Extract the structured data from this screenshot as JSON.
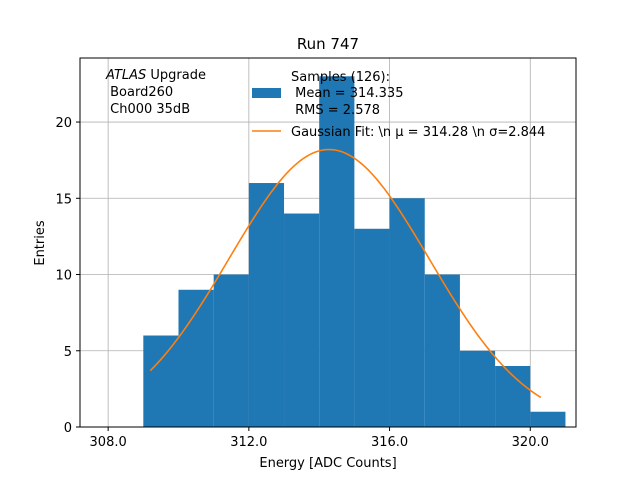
{
  "chart_data": {
    "type": "bar",
    "title": "Run 747",
    "xlabel": "Energy [ADC Counts]",
    "ylabel": "Entries",
    "xlim": [
      307.2,
      321.3
    ],
    "ylim": [
      0,
      24.2
    ],
    "grid": true,
    "xticks": [
      308,
      312,
      316,
      320
    ],
    "xtick_labels": [
      "308.0",
      "312.0",
      "316.0",
      "320.0"
    ],
    "yticks": [
      0,
      5,
      10,
      15,
      20
    ],
    "yticks_labels": [
      "0",
      "5",
      "10",
      "15",
      "20"
    ],
    "bin_edges": [
      309,
      310,
      311,
      312,
      313,
      314,
      315,
      316,
      317,
      318,
      319,
      320,
      321
    ],
    "counts": [
      6,
      9,
      10,
      16,
      14,
      23,
      13,
      15,
      10,
      5,
      4,
      1
    ],
    "bar_color": "#1f77b4",
    "fit_color": "#ff7f0e",
    "fit": {
      "mu": 314.28,
      "sigma": 2.844,
      "amplitude": 18.2,
      "x_range": [
        309.2,
        320.3
      ]
    },
    "annotation_lines": [
      "ATLAS Upgrade",
      " Board260",
      " Ch000 35dB"
    ],
    "legend": {
      "position": "top-right",
      "hist_lines": [
        "Samples (126):",
        " Mean = 314.335",
        " RMS = 2.578"
      ],
      "fit_label": "Gaussian Fit: \\n μ = 314.28 \\n σ=2.844"
    }
  }
}
